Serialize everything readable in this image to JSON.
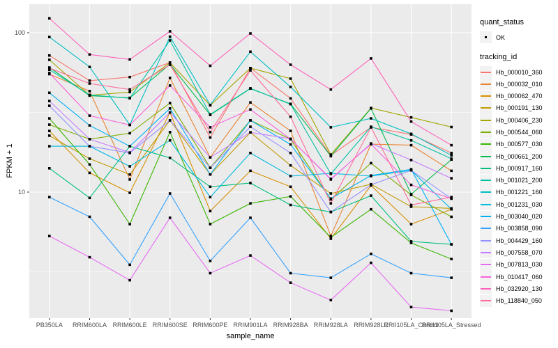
{
  "figure": {
    "background": "#FFFFFF",
    "panel_background": "#EBEBEB",
    "grid_color": "#FFFFFF",
    "tick_color": "#333333",
    "tick_label_color": "#4D4D4D",
    "point_color": "#000000"
  },
  "axes": {
    "x_title": "sample_name",
    "y_title": "FPKM + 1",
    "y_major_ticks": [
      {
        "label": "100",
        "value": 100
      },
      {
        "label": "10",
        "value": 10
      }
    ],
    "y_minor_values": [
      31.623,
      3.1623
    ]
  },
  "legend": {
    "quant_title": "quant_status",
    "quant_items": [
      {
        "label": "OK",
        "marker": "black-point"
      }
    ],
    "tracking_title": "tracking_id"
  },
  "chart_data": {
    "type": "line",
    "title": "",
    "xlabel": "sample_name",
    "ylabel": "FPKM + 1",
    "y_scale": "log10",
    "ylim": [
      1.55,
      150
    ],
    "grid": true,
    "legend_position": "right",
    "point_marker": "filled-black-square",
    "categories": [
      "PB350LA",
      "RRIM600LA",
      "RRIM600LE",
      "RRIM600SE",
      "RRIM600PE",
      "RRIM901LA",
      "RRIM928BA",
      "RRIM928LA",
      "RRIM928LE",
      "RRII105LA_Control",
      "RRII105LA_Stressed"
    ],
    "series": [
      {
        "name": "Hb_000010_360",
        "color": "#F8766D",
        "values": [
          72,
          50,
          52.7,
          65,
          22,
          60,
          38.7,
          17,
          25.5,
          23,
          17.6
        ]
      },
      {
        "name": "Hb_000032_010",
        "color": "#EA8331",
        "values": [
          55,
          43,
          12,
          52,
          16.5,
          36.5,
          24.2,
          5.3,
          20,
          19.7,
          13.6
        ]
      },
      {
        "name": "Hb_000062_470",
        "color": "#D89000",
        "values": [
          24.2,
          13.2,
          9.9,
          31.6,
          7.6,
          13.6,
          10.8,
          5.1,
          11,
          6.3,
          7.8
        ]
      },
      {
        "name": "Hb_000191_130",
        "color": "#C09B00",
        "values": [
          22.6,
          16.2,
          12.9,
          28.2,
          12.9,
          23.7,
          14.7,
          9.8,
          11.2,
          8.1,
          7.9
        ]
      },
      {
        "name": "Hb_000406_230",
        "color": "#A3A500",
        "values": [
          67.6,
          40.5,
          42.4,
          64.9,
          35,
          60,
          51.5,
          17.2,
          33.7,
          29.4,
          25.6
        ]
      },
      {
        "name": "Hb_000544_060",
        "color": "#7CAE00",
        "values": [
          26.5,
          21.5,
          23.4,
          36.2,
          14.2,
          28.2,
          21.5,
          9,
          15.2,
          9.6,
          7
        ]
      },
      {
        "name": "Hb_000577_030",
        "color": "#39B600",
        "values": [
          29,
          14.9,
          6.3,
          23.8,
          6.3,
          8.5,
          9.4,
          5.2,
          7.8,
          4.8,
          3.8
        ]
      },
      {
        "name": "Hb_000661_200",
        "color": "#00BB4E",
        "values": [
          60.5,
          40.3,
          39,
          63.5,
          30.5,
          44.6,
          35.8,
          16.8,
          33.5,
          9.7,
          16
        ]
      },
      {
        "name": "Hb_000917_160",
        "color": "#00BF7D",
        "values": [
          14.1,
          9.2,
          19.4,
          16.4,
          10.8,
          11.4,
          8.3,
          7.5,
          9.5,
          4.9,
          4.7
        ]
      },
      {
        "name": "Hb_001021_200",
        "color": "#00C1A3",
        "values": [
          58.6,
          40.7,
          38.8,
          89.5,
          30.7,
          44.8,
          35.6,
          13,
          25.7,
          21.1,
          16.2
        ]
      },
      {
        "name": "Hb_001221_160",
        "color": "#00BFC4",
        "values": [
          94,
          61,
          26.4,
          94.4,
          35.2,
          76,
          45.7,
          25.5,
          29,
          23.2,
          17
        ]
      },
      {
        "name": "Hb_001231_030",
        "color": "#00BAE0",
        "values": [
          19.4,
          19.4,
          14.5,
          21.1,
          9.3,
          17.6,
          12.6,
          13.1,
          12.6,
          13.7,
          7.8
        ]
      },
      {
        "name": "Hb_003040_020",
        "color": "#00B0F6",
        "values": [
          42,
          26.2,
          19.4,
          33.5,
          12.9,
          28.2,
          19.9,
          9.1,
          12.7,
          13.9,
          4.7
        ]
      },
      {
        "name": "Hb_003858_090",
        "color": "#35A2FF",
        "values": [
          9.3,
          7,
          3.5,
          9.8,
          3.7,
          6.9,
          3.1,
          2.9,
          4.1,
          3.1,
          2.9
        ]
      },
      {
        "name": "Hb_004429_160",
        "color": "#9590FF",
        "values": [
          34.8,
          19.4,
          17.6,
          28.2,
          14.2,
          25.7,
          17.6,
          7.5,
          11.1,
          13.7,
          9.1
        ]
      },
      {
        "name": "Hb_007558_070",
        "color": "#C77CFF",
        "values": [
          37.3,
          21.5,
          17.7,
          31.6,
          16.5,
          23.7,
          21.6,
          12,
          20.2,
          15.9,
          12.2
        ]
      },
      {
        "name": "Hb_007813_030",
        "color": "#E76BF3",
        "values": [
          5.3,
          3.9,
          2.8,
          6.9,
          3.1,
          4,
          2.7,
          2.1,
          3.6,
          1.9,
          1.8
        ]
      },
      {
        "name": "Hb_010417_060",
        "color": "#FA62DB",
        "values": [
          55.8,
          30.2,
          26.4,
          46.6,
          25.5,
          33,
          21.5,
          12.1,
          20,
          11.1,
          9.1
        ]
      },
      {
        "name": "Hb_032920_130",
        "color": "#FF62BC",
        "values": [
          123,
          73,
          68,
          102,
          62,
          99,
          63,
          44,
          69,
          27.7,
          19.7
        ]
      },
      {
        "name": "Hb_118840_050",
        "color": "#FF6A98",
        "values": [
          60,
          48,
          44,
          63,
          23.8,
          58,
          29.7,
          8.5,
          25.5,
          8.3,
          9.3
        ]
      }
    ]
  }
}
